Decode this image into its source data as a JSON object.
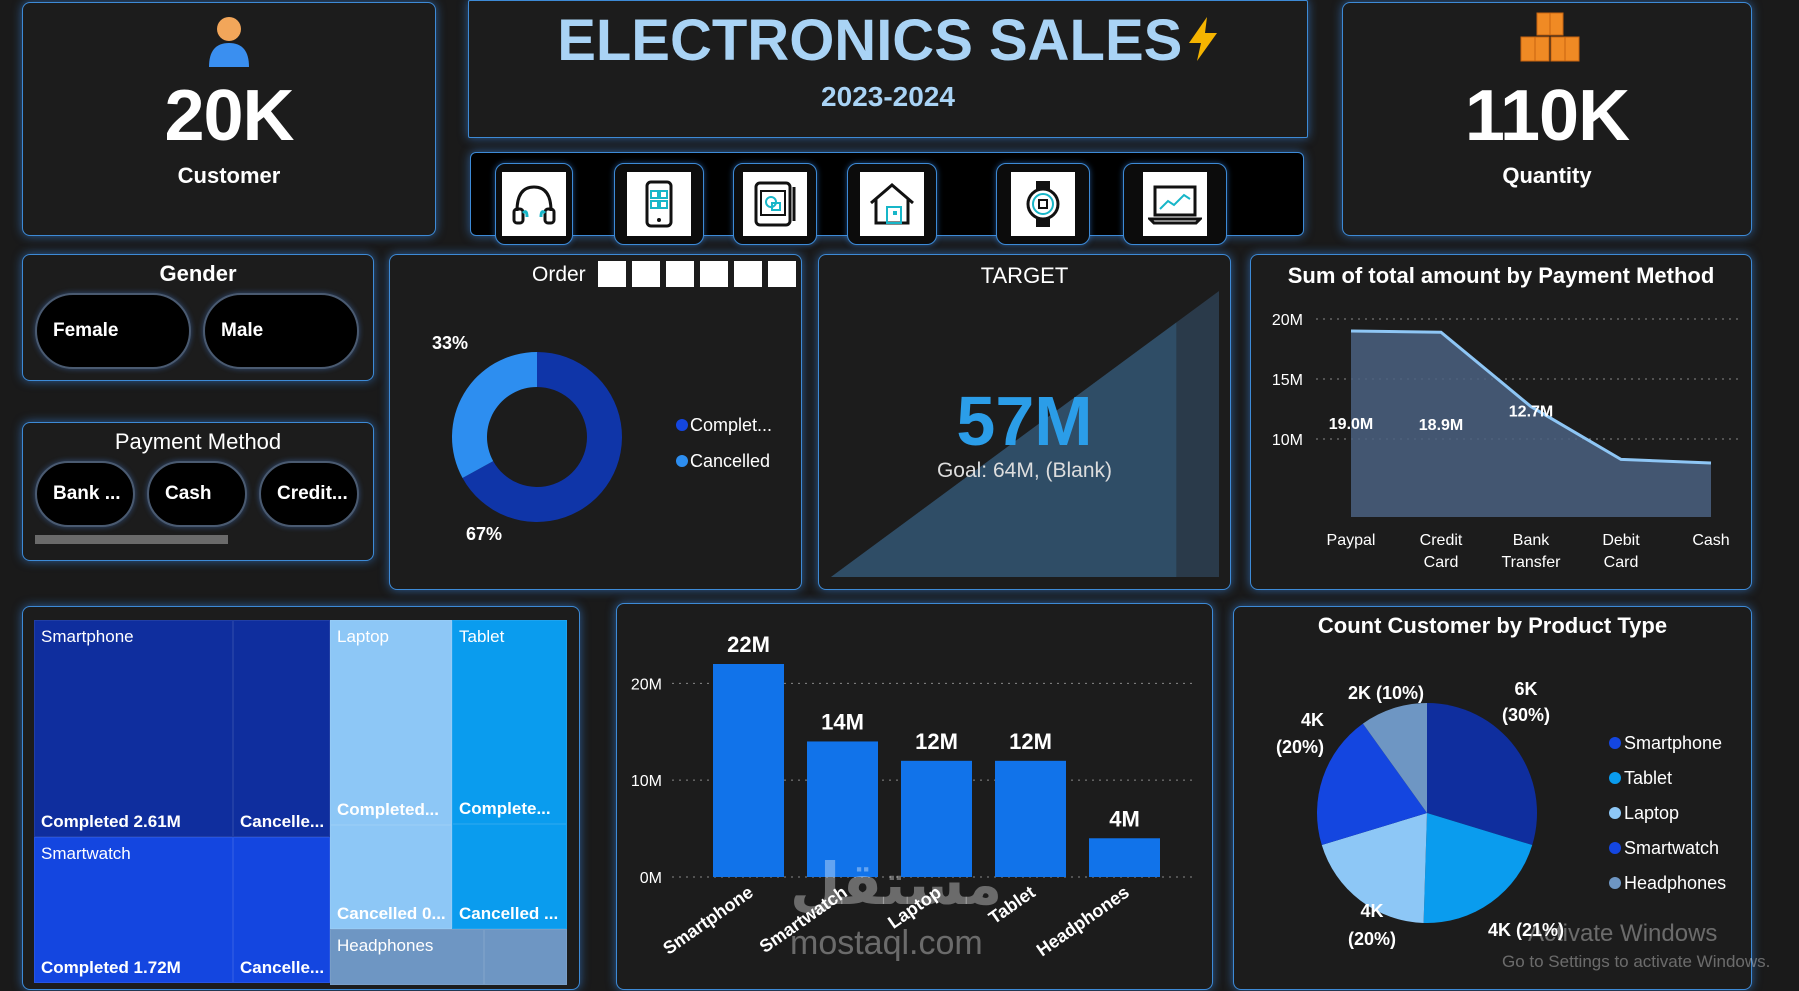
{
  "kpis": {
    "customer": {
      "value": "20K",
      "label": "Customer"
    },
    "quantity": {
      "value": "110K",
      "label": "Quantity"
    }
  },
  "header": {
    "title": "ELECTRONICS SALES",
    "bolt_icon": "bolt-icon",
    "subtitle": "2023-2024"
  },
  "category_icons": [
    "headphones-icon",
    "smartphone-icon",
    "tablet-icon",
    "smart-home-icon",
    "smartwatch-icon",
    "laptop-icon"
  ],
  "gender": {
    "title": "Gender",
    "options": [
      "Female",
      "Male"
    ]
  },
  "payment_filter": {
    "title": "Payment Method",
    "options": [
      "Bank ...",
      "Cash",
      "Credit..."
    ]
  },
  "order_status": {
    "title": "Order",
    "chart_data": {
      "type": "pie",
      "variant": "donut",
      "slices": [
        {
          "label": "Complet...",
          "value": 67,
          "pct_label": "67%",
          "color": "#0f35a8"
        },
        {
          "label": "Cancelled",
          "value": 33,
          "pct_label": "33%",
          "color": "#2d8ef0"
        }
      ]
    }
  },
  "target": {
    "title": "TARGET",
    "value": "57M",
    "goal_text": "Goal: 64M, (Blank)",
    "progress": 0.89
  },
  "payment_amount": {
    "title": "Sum of total amount by Payment Method",
    "chart_data": {
      "type": "area",
      "categories": [
        "Paypal",
        "Credit Card",
        "Bank Transfer",
        "Debit Card",
        "Cash"
      ],
      "category_lines": [
        [
          "Paypal"
        ],
        [
          "Credit",
          "Card"
        ],
        [
          "Bank",
          "Transfer"
        ],
        [
          "Debit",
          "Card"
        ],
        [
          "Cash"
        ]
      ],
      "values": [
        19.0,
        18.9,
        12.7,
        8.3,
        8.0
      ],
      "data_labels": [
        "19.0M",
        "18.9M",
        "12.7M",
        "",
        ""
      ],
      "yticks": [
        "10M",
        "15M",
        "20M"
      ],
      "ytick_values": [
        10,
        15,
        20
      ],
      "ylim": [
        3.5,
        21
      ],
      "grid": true
    }
  },
  "treemap": {
    "cells": [
      {
        "title": "Smartphone",
        "label": "Completed 2.61M",
        "color": "#0f2e9e"
      },
      {
        "title": "",
        "label": "Cancelle...",
        "color": "#0f2e9e"
      },
      {
        "title": "Smartwatch",
        "label": "Completed 1.72M",
        "color": "#1446e0"
      },
      {
        "title": "",
        "label": "Cancelle...",
        "color": "#1446e0"
      },
      {
        "title": "Laptop",
        "label": "Completed...",
        "color": "#8dc7f6"
      },
      {
        "title": "",
        "label": "Cancelled 0...",
        "color": "#8dc7f6"
      },
      {
        "title": "Tablet",
        "label": "Complete...",
        "color": "#0a9cee"
      },
      {
        "title": "",
        "label": "Cancelled ...",
        "color": "#0a9cee"
      },
      {
        "title": "Headphones",
        "label": "",
        "color": "#6e96c3"
      },
      {
        "title": "",
        "label": "",
        "color": "#6e96c3"
      }
    ]
  },
  "product_sales": {
    "chart_data": {
      "type": "bar",
      "categories": [
        "Smartphone",
        "Smartwatch",
        "Laptop",
        "Tablet",
        "Headphones"
      ],
      "values": [
        22,
        14,
        12,
        12,
        4
      ],
      "data_labels": [
        "22M",
        "14M",
        "12M",
        "12M",
        "4M"
      ],
      "yticks": [
        "0M",
        "10M",
        "20M"
      ],
      "ytick_values": [
        0,
        10,
        20
      ],
      "ylim": [
        0,
        22
      ],
      "color": "#1173ea",
      "grid": true
    }
  },
  "product_customers": {
    "title": "Count Customer by Product Type",
    "chart_data": {
      "type": "pie",
      "slices": [
        {
          "label": "Smartphone",
          "value": 30,
          "label_lines": [
            "6K",
            "(30%)"
          ],
          "color": "#0f2e9e"
        },
        {
          "label": "Tablet",
          "value": 21,
          "label_lines": [
            "4K (21%)"
          ],
          "color": "#0a9cee"
        },
        {
          "label": "Laptop",
          "value": 20,
          "label_lines": [
            "4K",
            "(20%)"
          ],
          "color": "#8dc7f6"
        },
        {
          "label": "Smartwatch",
          "value": 20,
          "label_lines": [
            "4K",
            "(20%)"
          ],
          "color": "#1446e0"
        },
        {
          "label": "Headphones",
          "value": 10,
          "label_lines": [
            "2K (10%)"
          ],
          "color": "#6e96c3"
        }
      ]
    }
  },
  "watermark": {
    "activate": "Activate Windows",
    "settings": "Go to Settings to activate Windows.",
    "brand": "mostaql.com",
    "brand_arabic": "مستقل"
  }
}
